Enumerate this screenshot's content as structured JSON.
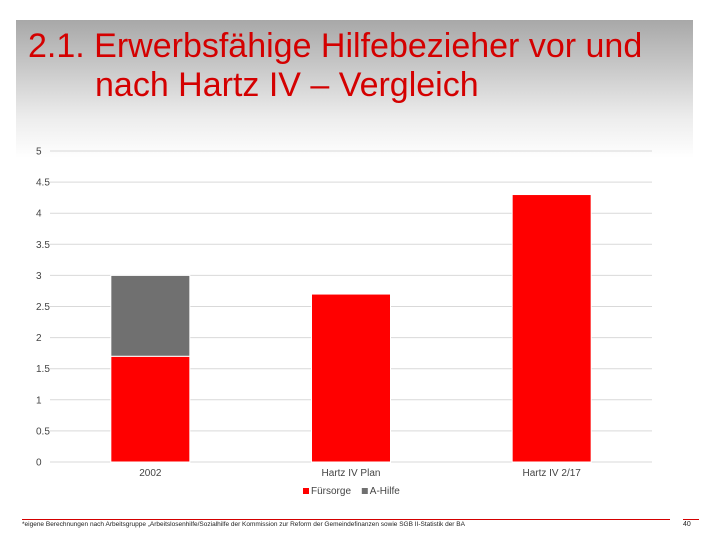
{
  "slide": {
    "title_line1": "2.1. Erwerbsfähige Hilfebezieher vor und",
    "title_line2": "nach Hartz IV – Vergleich",
    "footnote": "*eigene Berechnungen nach Arbeitsgruppe „Arbeitslosenhilfe/Sozialhilfe der Kommission zur Reform der Gemeindefinanzen sowie SGB II-Statistik der BA",
    "page_number": "40"
  },
  "colors": {
    "title": "#d40000",
    "fuersorge": "#ff0000",
    "a_hilfe": "#707070",
    "footer_rule": "#d40000"
  },
  "chart_data": {
    "type": "bar",
    "stacked": true,
    "categories": [
      "2002",
      "Hartz IV Plan",
      "Hartz IV 2/17"
    ],
    "series": [
      {
        "name": "Fürsorge",
        "values": [
          1.7,
          2.7,
          4.3
        ],
        "color": "#ff0000"
      },
      {
        "name": "A-Hilfe",
        "values": [
          1.3,
          0,
          0
        ],
        "color": "#707070"
      }
    ],
    "y_ticks": [
      "0",
      "0.5",
      "1",
      "1.5",
      "2",
      "2.5",
      "3",
      "3.5",
      "4",
      "4.5",
      "5"
    ],
    "ylim": [
      0,
      5
    ],
    "grid": true,
    "legend_position": "bottom"
  }
}
